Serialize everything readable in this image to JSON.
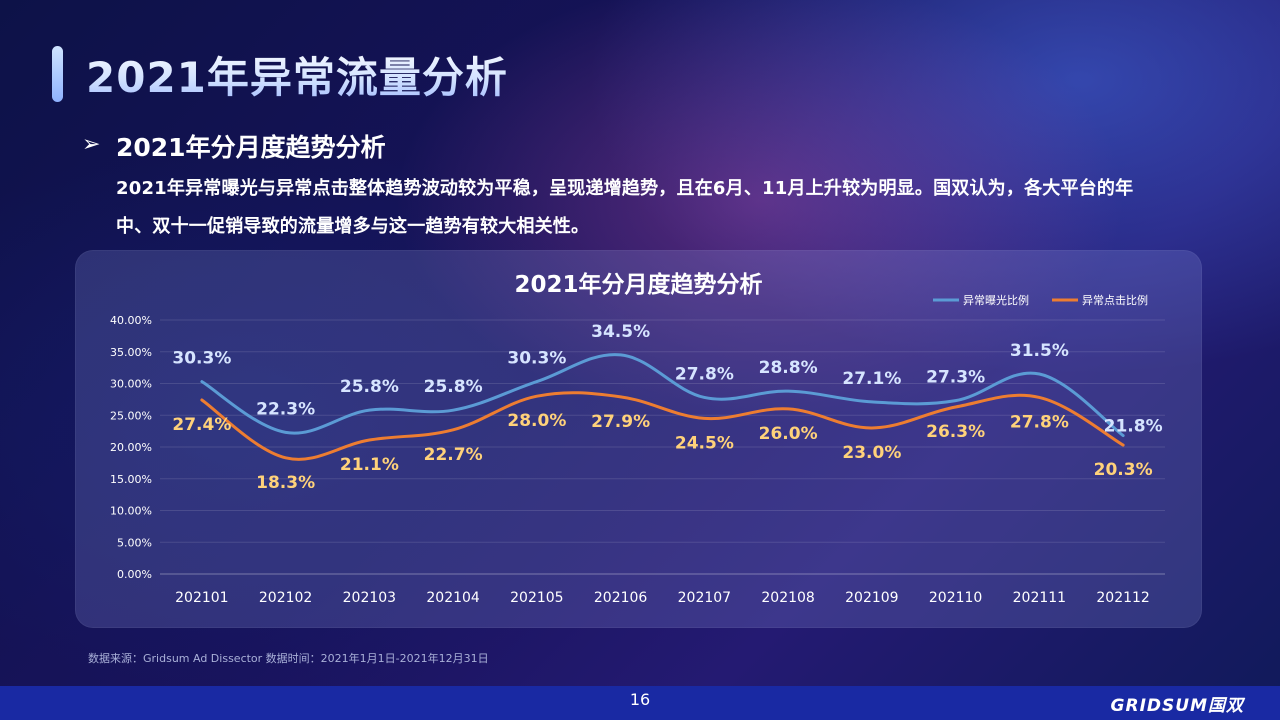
{
  "page": {
    "title": "2021年异常流量分析",
    "section_heading": "2021年分月度趋势分析",
    "description": "2021年异常曝光与异常点击整体趋势波动较为平稳，呈现递增趋势，且在6月、11月上升较为明显。国双认为，各大平台的年中、双十一促销导致的流量增多与这一趋势有较大相关性。",
    "source": "数据来源：Gridsum Ad Dissector 数据时间：2021年1月1日-2021年12月31日",
    "page_number": "16",
    "brand": "GRIDSUM国双"
  },
  "chart_data": {
    "type": "line",
    "title": "2021年分月度趋势分析",
    "categories": [
      "202101",
      "202102",
      "202103",
      "202104",
      "202105",
      "202106",
      "202107",
      "202108",
      "202109",
      "202110",
      "202111",
      "202112"
    ],
    "y_ticks": [
      "0.00%",
      "5.00%",
      "10.00%",
      "15.00%",
      "20.00%",
      "25.00%",
      "30.00%",
      "35.00%",
      "40.00%"
    ],
    "ylim": [
      0,
      40
    ],
    "grid": true,
    "legend_position": "top-right",
    "series": [
      {
        "name": "异常曝光比例",
        "color": "#5b9bd5",
        "label_color": "#d6e4ff",
        "values": [
          30.3,
          22.3,
          25.8,
          25.8,
          30.3,
          34.5,
          27.8,
          28.8,
          27.1,
          27.3,
          31.5,
          21.8
        ],
        "labels": [
          "30.3%",
          "22.3%",
          "25.8%",
          "25.8%",
          "30.3%",
          "34.5%",
          "27.8%",
          "28.8%",
          "27.1%",
          "27.3%",
          "31.5%",
          "21.8%"
        ]
      },
      {
        "name": "异常点击比例",
        "color": "#ed7d31",
        "label_color": "#ffd27a",
        "values": [
          27.4,
          18.3,
          21.1,
          22.7,
          28.0,
          27.9,
          24.5,
          26.0,
          23.0,
          26.3,
          27.8,
          20.3
        ],
        "labels": [
          "27.4%",
          "18.3%",
          "21.1%",
          "22.7%",
          "28.0%",
          "27.9%",
          "24.5%",
          "26.0%",
          "23.0%",
          "26.3%",
          "27.8%",
          "20.3%"
        ]
      }
    ]
  }
}
